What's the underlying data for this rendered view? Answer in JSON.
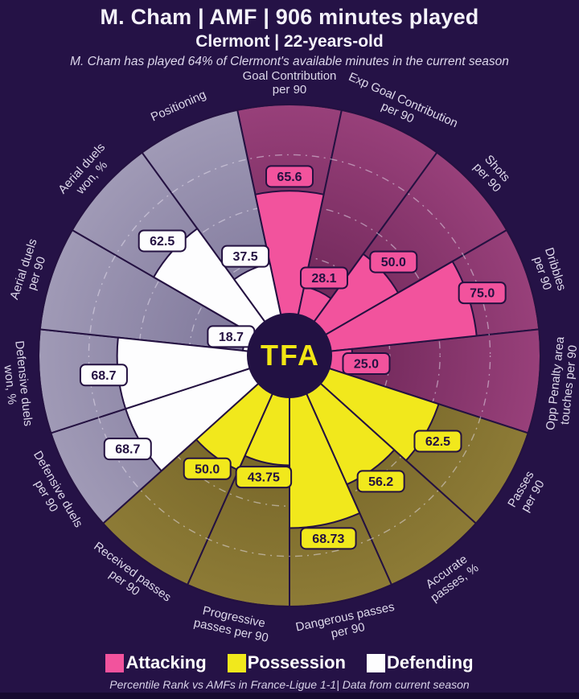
{
  "header": {
    "title": "M. Cham | AMF | 906 minutes played",
    "subtitle": "Clermont | 22-years-old",
    "note": "M. Cham has played 64% of Clermont's available minutes in the current season"
  },
  "chart_data": {
    "type": "pizza-radar",
    "description": "Percentile rank pizza chart with 15 sectors in 3 groups",
    "ylim": [
      0,
      100
    ],
    "gridlines": [
      20,
      40,
      60,
      80
    ],
    "grid_style": "dash-dot",
    "categories": [
      "Goal Contribution per 90",
      "Exp Goal Contribution per 90",
      "Shots per 90",
      "Dribbles per 90",
      "Opp Penalty area touches per 90",
      "Passes per 90",
      "Accurate passes, %",
      "Dangerous passes per 90",
      "Progressive passes per 90",
      "Received passes per 90",
      "Defensive duels per 90",
      "Defensive duels won, %",
      "Aerial duels per 90",
      "Aerial duels won, %",
      "Positioning"
    ],
    "label_lines": [
      [
        "Goal Contribution",
        "per 90"
      ],
      [
        "Exp Goal Contribution",
        "per 90"
      ],
      [
        "Shots",
        "per 90"
      ],
      [
        "Dribbles",
        "per 90"
      ],
      [
        "Opp Penalty area",
        "touches per 90"
      ],
      [
        "Passes",
        "per 90"
      ],
      [
        "Accurate",
        "passes, %"
      ],
      [
        "Dangerous passes",
        "per 90"
      ],
      [
        "Progressive",
        "passes per 90"
      ],
      [
        "Received passes",
        "per 90"
      ],
      [
        "Defensive duels",
        "per 90"
      ],
      [
        "Defensive duels",
        "won, %"
      ],
      [
        "Aerial duels",
        "per 90"
      ],
      [
        "Aerial duels",
        "won, %"
      ],
      [
        "Positioning"
      ]
    ],
    "values": [
      65.6,
      28.1,
      50.0,
      75.0,
      25.0,
      62.5,
      56.2,
      68.73,
      43.75,
      50.0,
      68.7,
      68.7,
      18.7,
      62.5,
      37.5
    ],
    "value_labels": [
      "65.6",
      "28.1",
      "50.0",
      "75.0",
      "25.0",
      "62.5",
      "56.2",
      "68.73",
      "43.75",
      "50.0",
      "68.7",
      "68.7",
      "18.7",
      "62.5",
      "37.5"
    ],
    "groups": [
      "attacking",
      "attacking",
      "attacking",
      "attacking",
      "attacking",
      "possession",
      "possession",
      "possession",
      "possession",
      "possession",
      "defending",
      "defending",
      "defending",
      "defending",
      "defending"
    ],
    "center_logo": "TFA",
    "colors": {
      "background": "#251246",
      "border": "#241141",
      "grid": "#e9e3f2",
      "label_text": "#ded9eb",
      "value_text": "#241141",
      "center_bg": "#221143",
      "center_text": "#f2e614",
      "attacking": "#f2539d",
      "attacking_bg_inner": "#63204f",
      "attacking_bg_outer": "#98407a",
      "possession": "#f1e81c",
      "possession_bg_inner": "#6a5a22",
      "possession_bg_outer": "#8d7b36",
      "defending": "#fdfdfe",
      "defending_bg_inner": "#776f94",
      "defending_bg_outer": "#a09ab6"
    }
  },
  "legend": {
    "items": [
      {
        "label": "Attacking",
        "color": "#f2539d"
      },
      {
        "label": "Possession",
        "color": "#f1e81c"
      },
      {
        "label": "Defending",
        "color": "#fdfdfe"
      }
    ]
  },
  "footer": {
    "text": "Percentile Rank vs AMFs in France-Ligue 1-1| Data from current season"
  }
}
